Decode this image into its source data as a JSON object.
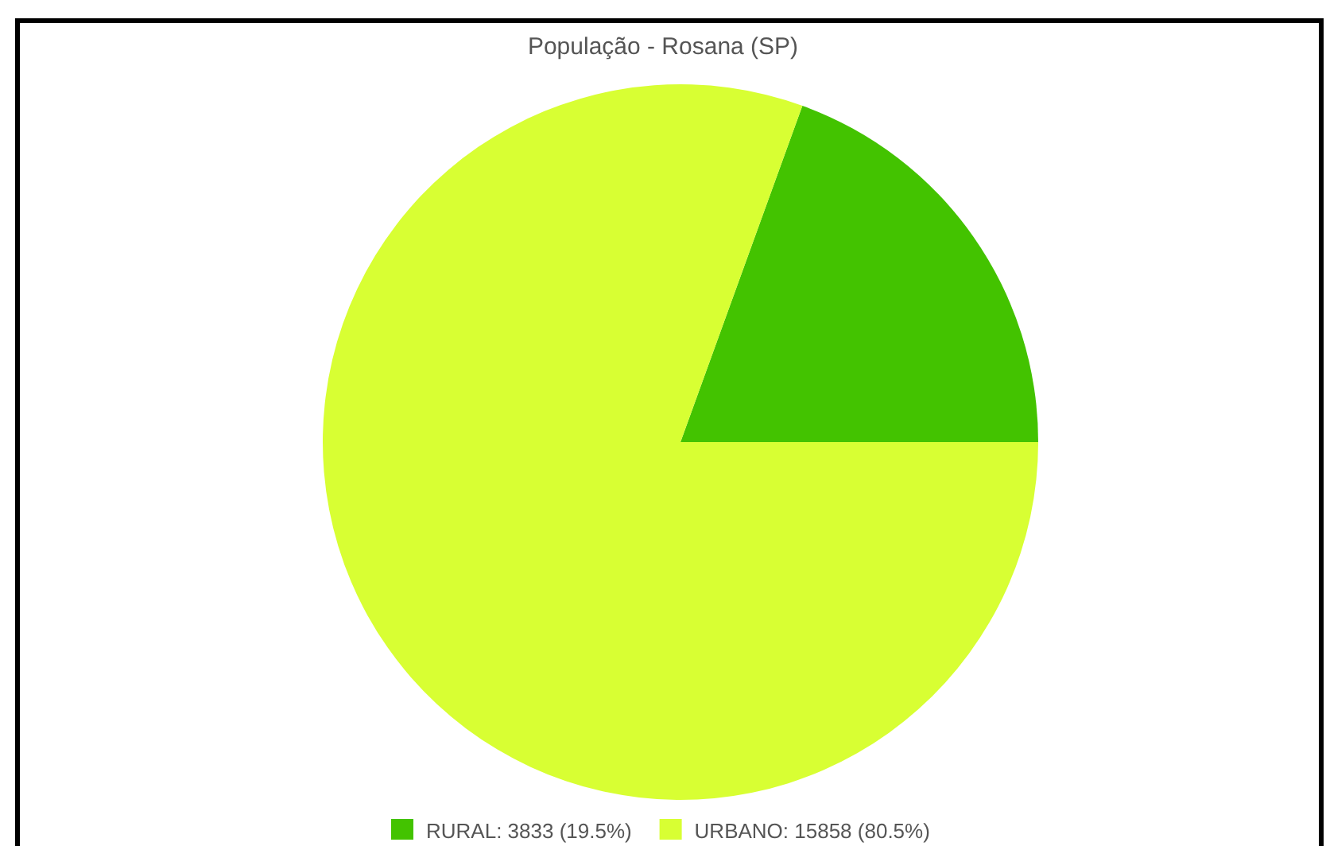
{
  "chart_data": {
    "type": "pie",
    "title": "População - Rosana (SP)",
    "categories": [
      "RURAL",
      "URBANO"
    ],
    "values": [
      3833,
      15858
    ],
    "value_labels": [
      "3833 (19.5%)",
      "15858 (80.5%)"
    ],
    "colors": [
      "#43c300",
      "#d8ff33"
    ],
    "legend": "bottom"
  }
}
